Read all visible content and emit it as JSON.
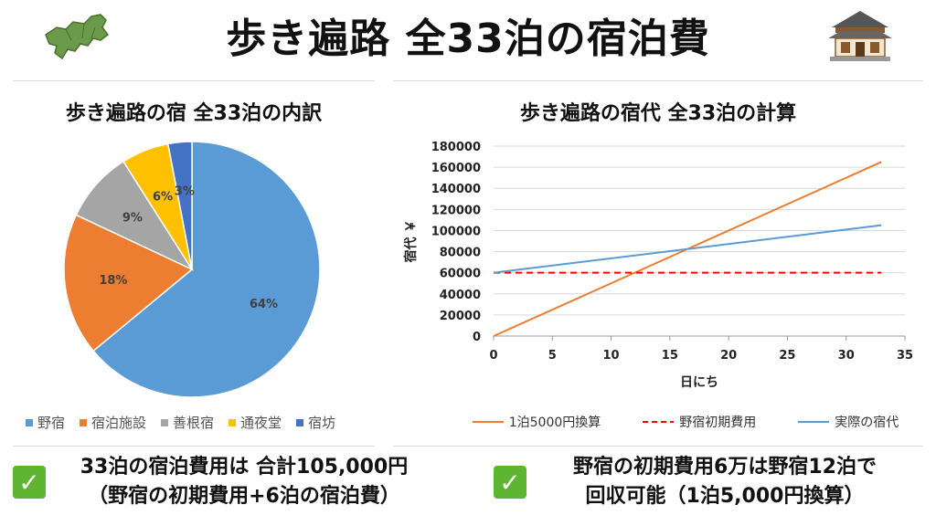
{
  "title": "歩き遍路 全33泊の宿泊費",
  "pie": {
    "title": "歩き遍路の宿 全33泊の内訳",
    "legend": [
      "野宿",
      "宿泊施設",
      "善根宿",
      "通夜堂",
      "宿坊"
    ]
  },
  "line": {
    "title": "歩き遍路の宿代 全33泊の計算",
    "ylabel": "宿代 ￥",
    "xlabel": "日にち",
    "legend": [
      "1泊5000円換算",
      "野宿初期費用",
      "実際の宿代"
    ]
  },
  "notes": {
    "left_line1": "33泊の宿泊費用は 合計105,000円",
    "left_line2": "（野宿の初期費用+6泊の宿泊費）",
    "right_line1": "野宿の初期費用6万は野宿12泊で",
    "right_line2": "回収可能（1泊5,000円換算）"
  },
  "chart_data": [
    {
      "type": "pie",
      "title": "歩き遍路の宿 全33泊の内訳",
      "categories": [
        "野宿",
        "宿泊施設",
        "善根宿",
        "通夜堂",
        "宿坊"
      ],
      "values": [
        64,
        18,
        9,
        6,
        3
      ],
      "labels": [
        "64%",
        "18%",
        "9%",
        "6%",
        "3%"
      ],
      "colors": [
        "#5b9bd5",
        "#ed7d31",
        "#a5a5a5",
        "#ffc000",
        "#4472c4"
      ],
      "legend_position": "bottom"
    },
    {
      "type": "line",
      "title": "歩き遍路の宿代 全33泊の計算",
      "xlabel": "日にち",
      "ylabel": "宿代 ￥",
      "xlim": [
        0,
        35
      ],
      "ylim": [
        0,
        180000
      ],
      "xticks": [
        0,
        5,
        10,
        15,
        20,
        25,
        30,
        35
      ],
      "yticks": [
        0,
        20000,
        40000,
        60000,
        80000,
        100000,
        120000,
        140000,
        160000,
        180000
      ],
      "grid": true,
      "legend_position": "bottom",
      "series": [
        {
          "name": "1泊5000円換算",
          "x": [
            0,
            33
          ],
          "y": [
            0,
            165000
          ],
          "color": "#ed7d31",
          "style": "solid"
        },
        {
          "name": "野宿初期費用",
          "x": [
            0,
            33
          ],
          "y": [
            60000,
            60000
          ],
          "color": "#ff0000",
          "style": "dashed"
        },
        {
          "name": "実際の宿代",
          "x": [
            0,
            33
          ],
          "y": [
            60000,
            105000
          ],
          "color": "#5b9bd5",
          "style": "solid"
        }
      ]
    }
  ],
  "icons": [
    "shikoku-map-icon",
    "temple-icon",
    "check-icon"
  ]
}
